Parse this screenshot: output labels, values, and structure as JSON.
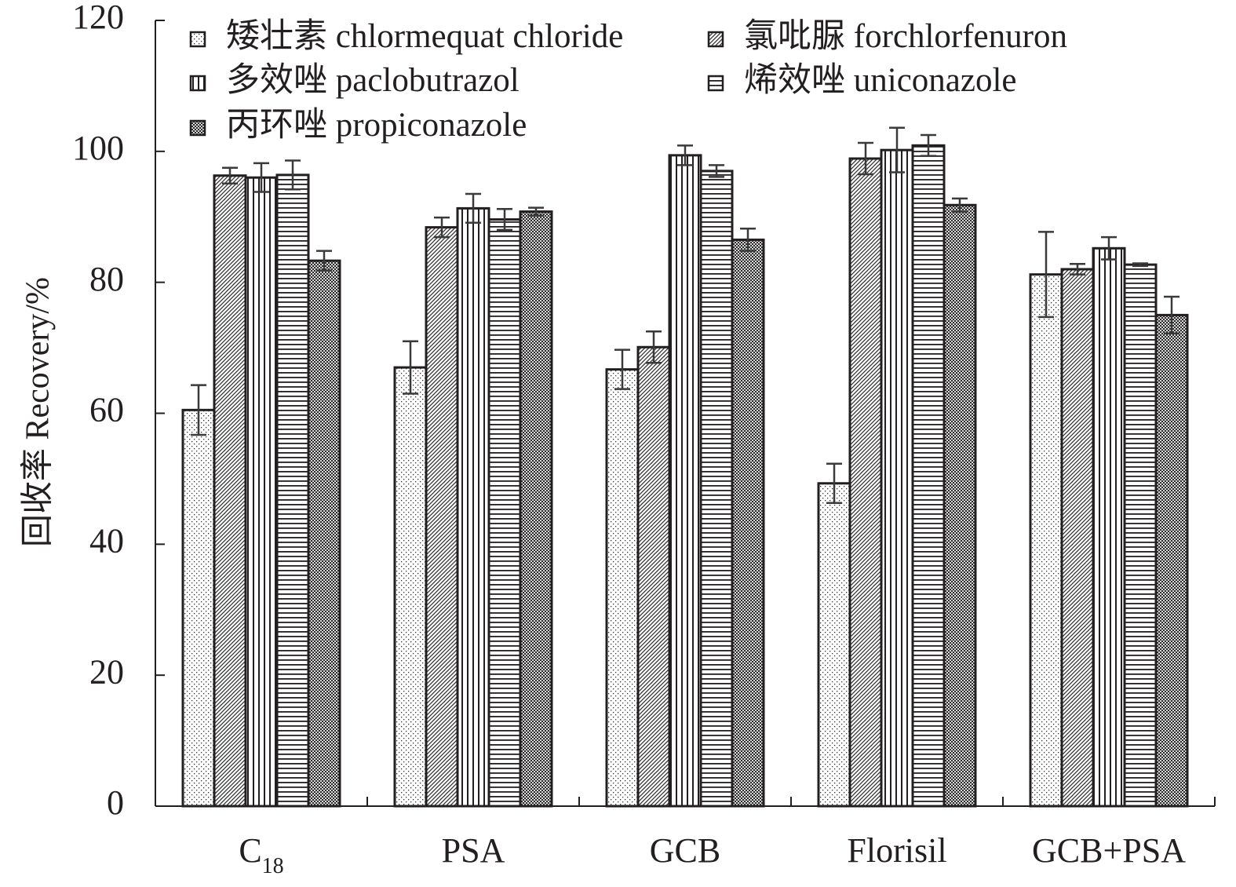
{
  "chart_data": {
    "type": "bar",
    "title": "",
    "xlabel": "",
    "ylabel": "回收率 Recovery/%",
    "ylim": [
      0,
      120
    ],
    "yticks": [
      0,
      20,
      40,
      60,
      80,
      100,
      120
    ],
    "grid": false,
    "legend_position": "top",
    "categories": [
      {
        "base": "C",
        "sub": "18"
      },
      {
        "base": "PSA",
        "sub": ""
      },
      {
        "base": "GCB",
        "sub": ""
      },
      {
        "base": "Florisil",
        "sub": ""
      },
      {
        "base": "GCB+PSA",
        "sub": ""
      }
    ],
    "series": [
      {
        "name": "矮壮素 chlormequat chloride",
        "pattern": "dots",
        "values": [
          60.5,
          67.0,
          66.7,
          49.3,
          81.2
        ],
        "errors": [
          3.8,
          4.0,
          3.0,
          3.0,
          6.5
        ]
      },
      {
        "name": "氯吡脲 forchlorfenuron",
        "pattern": "diagonal",
        "values": [
          96.3,
          88.4,
          70.1,
          98.9,
          82.0
        ],
        "errors": [
          1.2,
          1.5,
          2.4,
          2.4,
          0.8
        ]
      },
      {
        "name": "多效唑 paclobutrazol",
        "pattern": "vertical",
        "values": [
          96.0,
          91.3,
          99.4,
          100.2,
          85.2
        ],
        "errors": [
          2.2,
          2.2,
          1.5,
          3.4,
          1.7
        ]
      },
      {
        "name": "烯效唑 uniconazole",
        "pattern": "horizontal",
        "values": [
          96.4,
          89.6,
          97.0,
          100.9,
          82.7
        ],
        "errors": [
          2.2,
          1.6,
          0.9,
          1.6,
          0.2
        ]
      },
      {
        "name": "丙环唑 propiconazole",
        "pattern": "checker",
        "values": [
          83.3,
          90.8,
          86.5,
          91.8,
          75.0
        ],
        "errors": [
          1.5,
          0.6,
          1.7,
          1.0,
          2.8
        ]
      }
    ]
  }
}
